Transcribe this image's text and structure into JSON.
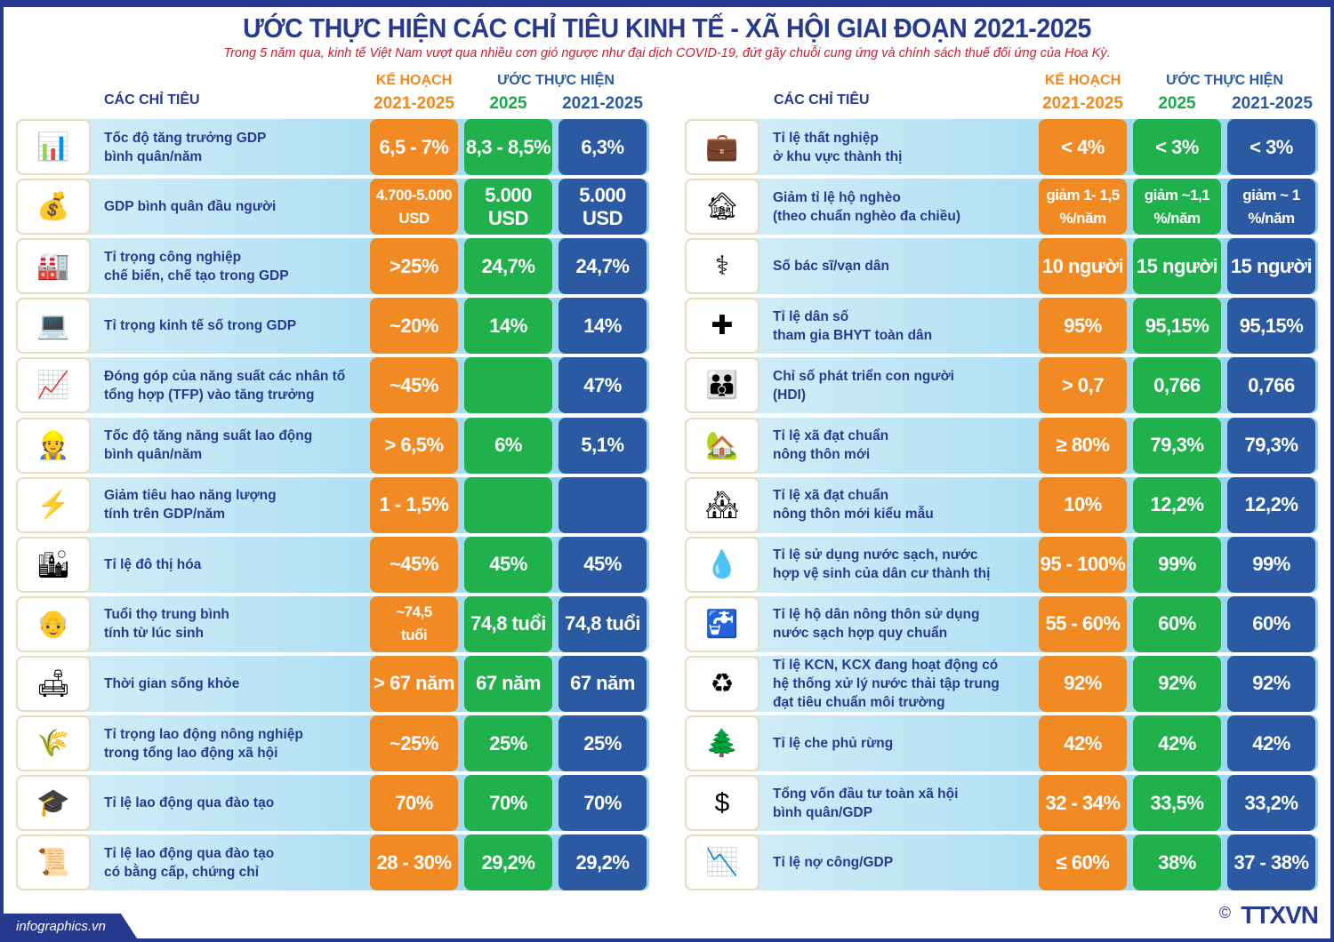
{
  "header": {
    "title": "ƯỚC THỰC HIỆN CÁC CHỈ TIÊU KINH TẾ - XÃ HỘI GIAI ĐOẠN 2021-2025",
    "subtitle": "Trong 5 năm qua, kinh tế Việt Nam vượt qua nhiều cơn gió ngược như đại dịch COVID-19, đứt gãy chuỗi cung ứng và chính sách thuế đối ứng của Hoa Kỳ."
  },
  "columns": {
    "indicator": "CÁC CHỈ TIÊU",
    "plan": "KẾ HOẠCH",
    "plan_period": "2021-2025",
    "estimate": "ƯỚC THỰC HIỆN",
    "est_2025": "2025",
    "est_period": "2021-2025"
  },
  "colors": {
    "plan": "#f28a24",
    "est_2025": "#20b04c",
    "est_period": "#2b5aa3",
    "title": "#283a8f",
    "subtitle": "#c8202f"
  },
  "left": [
    {
      "icon": "bar-chart-icon",
      "label": "Tốc độ tăng trưởng GDP\nbình quân/năm",
      "plan": "6,5 - 7%",
      "y2025": "8,3 - 8,5%",
      "period": "6,3%"
    },
    {
      "icon": "coins-growth-icon",
      "label": "GDP bình quân đầu người",
      "plan": "4.700-5.000\nUSD",
      "y2025": "5.000 USD",
      "period": "5.000 USD"
    },
    {
      "icon": "factory-workers-icon",
      "label": "Tỉ trọng công nghiệp\nchế biến, chế tạo trong GDP",
      "plan": ">25%",
      "y2025": "24,7%",
      "period": "24,7%"
    },
    {
      "icon": "digital-economy-icon",
      "label": "Tỉ trọng kinh tế số trong GDP",
      "plan": "~20%",
      "y2025": "14%",
      "period": "14%"
    },
    {
      "icon": "tablet-chart-icon",
      "label": "Đóng góp của năng suất các nhân tố\ntổng hợp (TFP) vào tăng trưởng",
      "plan": "~45%",
      "y2025": "",
      "period": "47%"
    },
    {
      "icon": "workers-icon",
      "label": "Tốc độ tăng năng suất lao động\nbình quân/năm",
      "plan": "> 6,5%",
      "y2025": "6%",
      "period": "5,1%"
    },
    {
      "icon": "energy-meter-icon",
      "label": "Giảm tiêu hao năng lượng\ntính trên GDP/năm",
      "plan": "1 - 1,5%",
      "y2025": "",
      "period": ""
    },
    {
      "icon": "city-icon",
      "label": "Tỉ lệ đô thị hóa",
      "plan": "~45%",
      "y2025": "45%",
      "period": "45%"
    },
    {
      "icon": "elderly-couple-icon",
      "label": "Tuổi thọ trung bình\ntính từ lúc sinh",
      "plan": "~74,5\ntuổi",
      "y2025": "74,8 tuổi",
      "period": "74,8 tuổi"
    },
    {
      "icon": "family-sofa-icon",
      "label": "Thời gian sống khỏe",
      "plan": "> 67 năm",
      "y2025": "67 năm",
      "period": "67 năm"
    },
    {
      "icon": "farmers-icon",
      "label": "Tỉ trọng lao động nông nghiệp\ntrong tổng lao động xã hội",
      "plan": "~25%",
      "y2025": "25%",
      "period": "25%"
    },
    {
      "icon": "training-icon",
      "label": "Tỉ lệ lao động qua đào tạo",
      "plan": "70%",
      "y2025": "70%",
      "period": "70%"
    },
    {
      "icon": "graduates-icon",
      "label": "Tỉ lệ lao động qua đào tạo\ncó bằng cấp, chứng chỉ",
      "plan": "28 - 30%",
      "y2025": "29,2%",
      "period": "29,2%"
    }
  ],
  "right": [
    {
      "icon": "unemployed-icon",
      "label": "Tỉ lệ thất nghiệp\nở khu vực thành thị",
      "plan": "< 4%",
      "y2025": "< 3%",
      "period": "< 3%"
    },
    {
      "icon": "poor-house-icon",
      "label": "Giảm tỉ lệ hộ nghèo\n(theo chuẩn nghèo đa chiều)",
      "plan": "giảm 1- 1,5\n%/năm",
      "y2025": "giảm ~1,1\n%/năm",
      "period": "giảm ~ 1\n%/năm"
    },
    {
      "icon": "doctor-icon",
      "label": "Số bác sĩ/vạn dân",
      "plan": "10 người",
      "y2025": "15 người",
      "period": "15 người"
    },
    {
      "icon": "health-insurance-icon",
      "label": "Tỉ lệ dân số\ntham gia BHYT toàn dân",
      "plan": "95%",
      "y2025": "95,15%",
      "period": "95,15%"
    },
    {
      "icon": "people-group-icon",
      "label": "Chỉ số phát triển con người\n(HDI)",
      "plan": "> 0,7",
      "y2025": "0,766",
      "period": "0,766"
    },
    {
      "icon": "rural-village-icon",
      "label": "Tỉ lệ xã đạt chuẩn\nnông thôn mới",
      "plan": "≥ 80%",
      "y2025": "79,3%",
      "period": "79,3%"
    },
    {
      "icon": "model-village-icon",
      "label": "Tỉ lệ xã đạt chuẩn\nnông thôn mới kiểu mẫu",
      "plan": "10%",
      "y2025": "12,2%",
      "period": "12,2%"
    },
    {
      "icon": "clean-water-icon",
      "label": "Tỉ lệ sử dụng nước sạch, nước\nhợp vệ sinh của dân cư thành thị",
      "plan": "95 - 100%",
      "y2025": "99%",
      "period": "99%"
    },
    {
      "icon": "water-tap-icon",
      "label": "Tỉ lệ hộ dân nông thôn sử dụng\nnước sạch hợp quy chuẩn",
      "plan": "55 - 60%",
      "y2025": "60%",
      "period": "60%"
    },
    {
      "icon": "wastewater-icon",
      "label": "Tỉ lệ KCN, KCX đang hoạt động có\nhệ thống xử lý nước thải tập trung\nđạt tiêu chuẩn môi trường",
      "plan": "92%",
      "y2025": "92%",
      "period": "92%"
    },
    {
      "icon": "forest-icon",
      "label": "Tỉ lệ che phủ rừng",
      "plan": "42%",
      "y2025": "42%",
      "period": "42%"
    },
    {
      "icon": "investment-coins-icon",
      "label": "Tổng vốn đầu tư toàn xã hội\nbình quân/GDP",
      "plan": "32 - 34%",
      "y2025": "33,5%",
      "period": "33,2%"
    },
    {
      "icon": "public-debt-icon",
      "label": "Tỉ lệ nợ công/GDP",
      "plan": "≤ 60%",
      "y2025": "38%",
      "period": "37 - 38%"
    }
  ],
  "footer": {
    "site": "infographics.vn",
    "copyright": "©",
    "logo": "TTXVN"
  }
}
